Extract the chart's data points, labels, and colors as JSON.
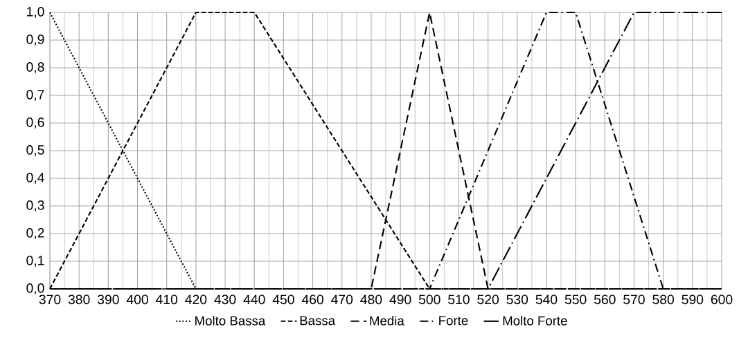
{
  "chart_data": {
    "type": "line",
    "xlim": [
      370,
      600
    ],
    "ylim": [
      0,
      1
    ],
    "xticks": [
      370,
      380,
      390,
      400,
      410,
      420,
      430,
      440,
      450,
      460,
      470,
      480,
      490,
      500,
      510,
      520,
      530,
      540,
      550,
      560,
      570,
      580,
      590,
      600
    ],
    "yticks": [
      {
        "value": 0,
        "label": "0,0"
      },
      {
        "value": 0.1,
        "label": "0,1"
      },
      {
        "value": 0.2,
        "label": "0,2"
      },
      {
        "value": 0.3,
        "label": "0,3"
      },
      {
        "value": 0.4,
        "label": "0,4"
      },
      {
        "value": 0.5,
        "label": "0,5"
      },
      {
        "value": 0.6,
        "label": "0,6"
      },
      {
        "value": 0.7,
        "label": "0,7"
      },
      {
        "value": 0.8,
        "label": "0,8"
      },
      {
        "value": 0.9,
        "label": "0,9"
      },
      {
        "value": 1,
        "label": "1,0"
      }
    ],
    "grid": true,
    "legend": "bottom",
    "marker": "none",
    "series": [
      {
        "name": "Molto Bassa",
        "color": "#000000",
        "line_style": "dotted",
        "x": [
          370,
          420,
          600
        ],
        "values": [
          1,
          0,
          0
        ]
      },
      {
        "name": "Bassa",
        "color": "#000000",
        "line_style": "dashed",
        "x": [
          370,
          420,
          440,
          500,
          600
        ],
        "values": [
          0,
          1,
          1,
          0,
          0
        ]
      },
      {
        "name": "Media",
        "color": "#000000",
        "line_style": "longdashed",
        "x": [
          370,
          480,
          500,
          520,
          600
        ],
        "values": [
          0,
          0,
          1,
          0,
          0
        ]
      },
      {
        "name": "Forte",
        "color": "#000000",
        "line_style": "dashdot",
        "x": [
          370,
          500,
          540,
          550,
          580,
          600
        ],
        "values": [
          0,
          0,
          1,
          1,
          0,
          0
        ]
      },
      {
        "name": "Molto Forte",
        "color": "#000000",
        "line_style": "longdashdot",
        "x": [
          370,
          520,
          570,
          600
        ],
        "values": [
          0,
          0,
          1,
          1
        ]
      }
    ]
  }
}
